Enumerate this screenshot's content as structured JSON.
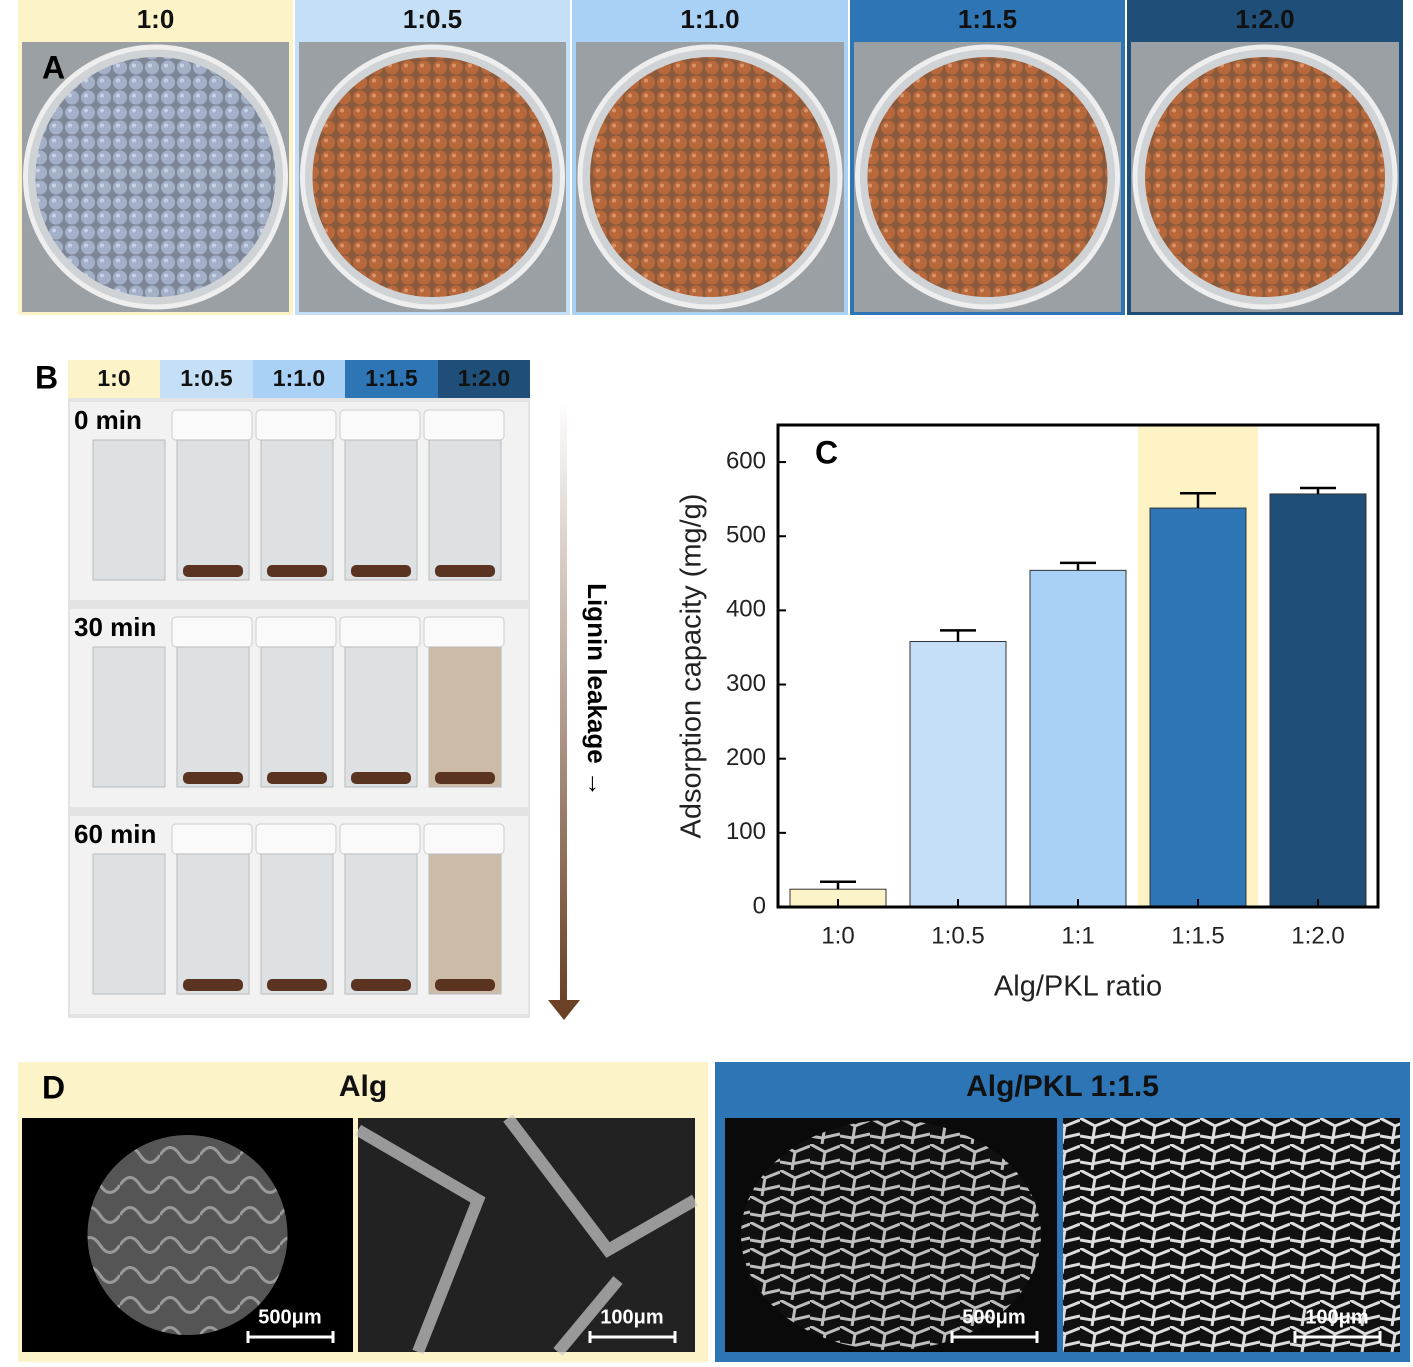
{
  "panel_a": {
    "label": "A",
    "headers": [
      "1:0",
      "1:0.5",
      "1:1.0",
      "1:1.5",
      "1:2.0"
    ],
    "header_colors": [
      "#fdf3c8",
      "#c5dff7",
      "#a9d0f5",
      "#2e75b6",
      "#1f4e79"
    ]
  },
  "panel_b": {
    "label": "B",
    "headers": [
      "1:0",
      "1:0.5",
      "1:1.0",
      "1:1.5",
      "1:2.0"
    ],
    "times": [
      "0 min",
      "30 min",
      "60 min"
    ],
    "arrow_label": "Lignin leakage →"
  },
  "chart_data": {
    "type": "bar",
    "label": "C",
    "categories": [
      "1:0",
      "1:0.5",
      "1:1",
      "1:1.5",
      "1:2.0"
    ],
    "values": [
      24,
      358,
      454,
      538,
      557
    ],
    "errors": [
      10,
      15,
      10,
      20,
      8
    ],
    "colors": [
      "#fdf3c8",
      "#c5dff7",
      "#a9d0f5",
      "#2e75b6",
      "#1f4e79"
    ],
    "highlight": [
      false,
      false,
      false,
      true,
      false
    ],
    "highlight_color": "#fdf3c4",
    "ylim": [
      0,
      650
    ],
    "yticks": [
      0,
      100,
      200,
      300,
      400,
      500,
      600
    ],
    "xlabel": "Alg/PKL ratio",
    "ylabel": "Adsorption capacity (mg/g)"
  },
  "panel_d": {
    "label": "D",
    "groups": [
      {
        "title": "Alg",
        "scales": [
          "500μm",
          "100μm"
        ]
      },
      {
        "title": "Alg/PKL 1:1.5",
        "scales": [
          "500μm",
          "100μm"
        ]
      }
    ]
  }
}
